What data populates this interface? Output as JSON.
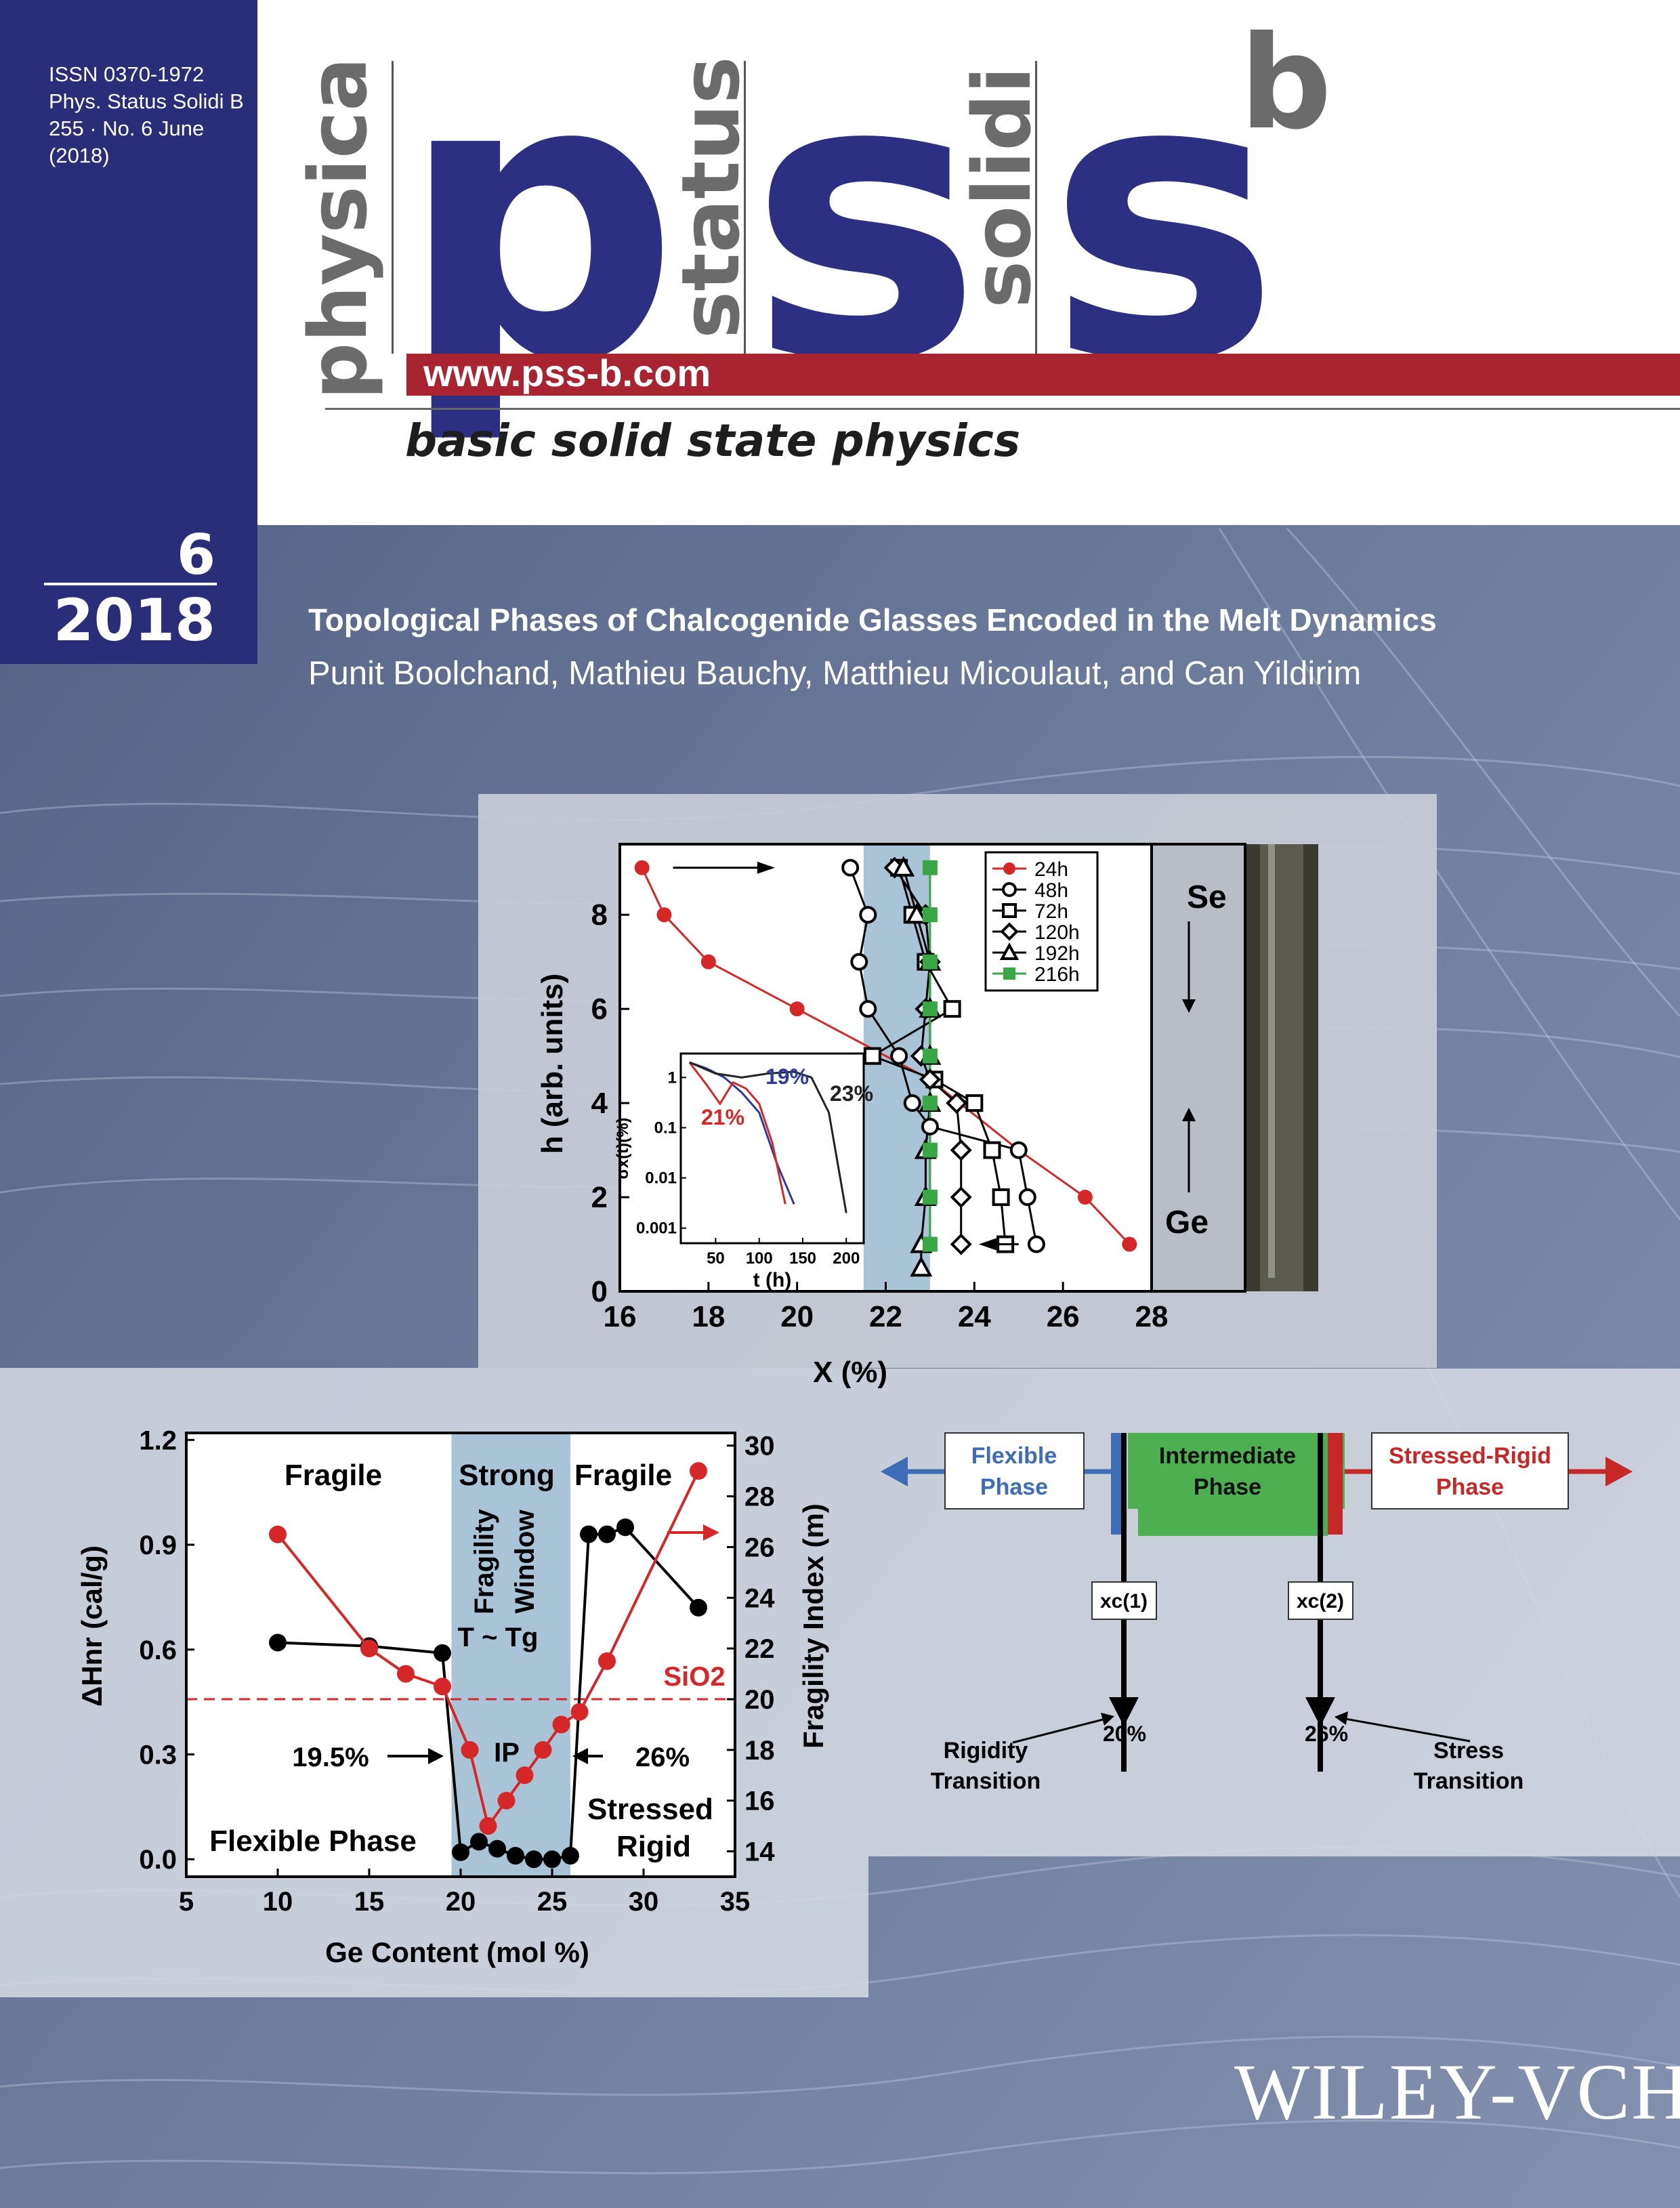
{
  "journal": {
    "issn": "ISSN 0370-1972",
    "abbrev": "Phys. Status Solidi B",
    "volume_issue": "255 · No. 6 June",
    "year_paren": "(2018)",
    "word_physica": "physica",
    "word_status": "status",
    "word_solidi": "solidi",
    "letter_p": "p",
    "letter_s1": "s",
    "letter_s2": "s",
    "letter_b": "b",
    "url": "www.pss-b.com",
    "tagline": "basic solid state physics",
    "issue_number": "6",
    "issue_year": "2018"
  },
  "article": {
    "title": "Topological Phases of Chalcogenide Glasses Encoded in the Melt Dynamics",
    "authors": "Punit Boolchand, Mathieu Bauchy, Matthieu Micoulaut, and Can Yildirim"
  },
  "publisher": "WILEY-VCH",
  "colors": {
    "navy": "#2a2e78",
    "red_bar": "#a82430",
    "series_red": "#d62728",
    "series_green": "#3aa645",
    "window_blue": "#a9c4d6",
    "flexible_blue": "#3f6db5",
    "intermediate_green": "#4caf50",
    "stressed_red": "#c62828"
  },
  "chart_data": [
    {
      "type": "scatter",
      "xlabel": "X (%)",
      "ylabel": "h (arb. units)",
      "xlim": [
        16,
        28
      ],
      "ylim": [
        0,
        9.5
      ],
      "xticks": [
        "16",
        "18",
        "20",
        "22",
        "24",
        "26",
        "28"
      ],
      "yticks": [
        "0",
        "2",
        "4",
        "6",
        "8"
      ],
      "shaded_window": [
        21.5,
        23
      ],
      "legend_placement": "top-right",
      "side_labels": {
        "top": "Se",
        "bottom": "Ge"
      },
      "series": [
        {
          "name": "24h",
          "marker": "filled-circle",
          "color": "#d62728",
          "x": [
            16.5,
            17.0,
            18.0,
            20.0,
            23.0,
            25.0,
            26.5,
            27.5
          ],
          "y": [
            9,
            8,
            7,
            6,
            4.5,
            3,
            2,
            1
          ]
        },
        {
          "name": "48h",
          "marker": "open-circle",
          "color": "#000000",
          "x": [
            21.2,
            21.6,
            21.4,
            21.6,
            22.3,
            22.6,
            23.0,
            25.0,
            25.2,
            25.4
          ],
          "y": [
            9,
            8,
            7,
            6,
            5,
            4,
            3.5,
            3,
            2,
            1
          ]
        },
        {
          "name": "72h",
          "marker": "open-square",
          "color": "#000000",
          "x": [
            22.3,
            22.6,
            22.9,
            23.5,
            21.7,
            23.1,
            24.0,
            24.4,
            24.6,
            24.7
          ],
          "y": [
            9,
            8,
            7,
            6,
            5,
            4.5,
            4,
            3,
            2,
            1
          ]
        },
        {
          "name": "120h",
          "marker": "open-diamond",
          "color": "#000000",
          "x": [
            22.2,
            22.9,
            23.0,
            22.9,
            22.8,
            23.0,
            23.6,
            23.7,
            23.7,
            23.7
          ],
          "y": [
            9,
            8,
            7,
            6,
            5,
            4.5,
            4,
            3,
            2,
            1
          ]
        },
        {
          "name": "192h",
          "marker": "open-triangle",
          "color": "#000000",
          "x": [
            22.4,
            22.7,
            23.0,
            23.0,
            23.0,
            23.0,
            22.9,
            22.9,
            22.8,
            22.8
          ],
          "y": [
            9,
            8,
            7,
            6,
            5,
            4,
            3,
            2,
            1,
            0.5
          ]
        },
        {
          "name": "216h",
          "marker": "filled-square",
          "color": "#3aa645",
          "x": [
            23.0,
            23.0,
            23.0,
            23.0,
            23.0,
            23.0,
            23.0,
            23.0,
            23.0
          ],
          "y": [
            9,
            8,
            7,
            6,
            5,
            4,
            3,
            2,
            1
          ]
        }
      ],
      "inset": {
        "xlabel": "t (h)",
        "ylabel": "σx(t)(%)",
        "xticks": [
          "50",
          "100",
          "150",
          "200"
        ],
        "yticks": [
          "0.001",
          "0.01",
          "0.1",
          "1"
        ],
        "xlim": [
          10,
          220
        ],
        "log_y": true,
        "ylim": [
          0.0005,
          3
        ],
        "series": [
          {
            "name": "19%",
            "color": "#2d3a9e",
            "t": [
              20,
              40,
              60,
              80,
              100,
              120,
              140
            ],
            "sigma": [
              2,
              1.5,
              1.0,
              0.5,
              0.2,
              0.02,
              0.003
            ]
          },
          {
            "name": "21%",
            "color": "#d62728",
            "t": [
              20,
              40,
              55,
              70,
              85,
              100,
              115,
              130
            ],
            "sigma": [
              2,
              0.7,
              0.3,
              0.8,
              0.6,
              0.3,
              0.05,
              0.003
            ]
          },
          {
            "name": "23%",
            "color": "#222222",
            "t": [
              20,
              50,
              80,
              110,
              140,
              160,
              180,
              200
            ],
            "sigma": [
              2,
              1.2,
              1.0,
              1.2,
              1.3,
              1.0,
              0.2,
              0.002
            ]
          }
        ]
      }
    },
    {
      "type": "scatter",
      "xlabel": "Ge Content (mol %)",
      "ylabel": "ΔHnr (cal/g)",
      "y2label": "Fragility Index (m)",
      "xlim": [
        5,
        35
      ],
      "ylim": [
        -0.05,
        1.22
      ],
      "y2lim": [
        13,
        30.5
      ],
      "xticks": [
        "5",
        "10",
        "15",
        "20",
        "25",
        "30",
        "35"
      ],
      "yticks": [
        "0.0",
        "0.3",
        "0.6",
        "0.9",
        "1.2"
      ],
      "y2ticks": [
        "14",
        "16",
        "18",
        "20",
        "22",
        "24",
        "26",
        "28",
        "30"
      ],
      "shaded_window": [
        19.5,
        26
      ],
      "region_labels": {
        "fragile_left": "Fragile",
        "strong": "Strong",
        "fragile_right": "Fragile",
        "fragility": "Fragility",
        "window": "Window",
        "t_tg": "T ~ Tg",
        "ip": "IP",
        "flexible_phase": "Flexible Phase",
        "stressed": "Stressed",
        "rigid": "Rigid",
        "left_edge": "19.5%",
        "right_edge": "26%",
        "sio2": "SiO2"
      },
      "sio2_fragility": 20,
      "series": [
        {
          "name": "ΔHnr",
          "axis": "left",
          "color": "#000000",
          "x": [
            10,
            15,
            19,
            20,
            21,
            22,
            23,
            24,
            25,
            26,
            27,
            28,
            29,
            33
          ],
          "y": [
            0.62,
            0.61,
            0.59,
            0.02,
            0.05,
            0.03,
            0.01,
            0.0,
            0.0,
            0.01,
            0.93,
            0.93,
            0.95,
            0.72
          ]
        },
        {
          "name": "Fragility Index",
          "axis": "right",
          "color": "#d62728",
          "x": [
            10,
            15,
            17,
            19,
            20.5,
            21.5,
            22.5,
            23.5,
            24.5,
            25.5,
            26.5,
            28,
            33
          ],
          "y": [
            26.5,
            22,
            21,
            20.5,
            18,
            15,
            16,
            17,
            18,
            19,
            19.5,
            21.5,
            29
          ]
        }
      ]
    }
  ],
  "phase_diagram": {
    "flexible_label": "Flexible",
    "flexible_label2": "Phase",
    "intermediate_label": "Intermediate",
    "intermediate_label2": "Phase",
    "stressed_label": "Stressed-Rigid",
    "stressed_label2": "Phase",
    "xc1_label": "xc(1)",
    "xc2_label": "xc(2)",
    "pct1": "20%",
    "pct2": "26%",
    "rigidity_label": "Rigidity",
    "rigidity_label2": "Transition",
    "stress_label": "Stress",
    "stress_label2": "Transition"
  }
}
